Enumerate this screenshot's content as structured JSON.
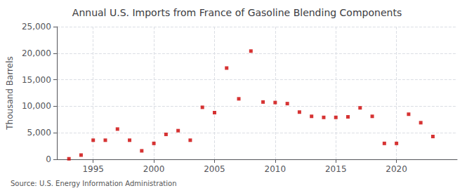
{
  "chart_data": {
    "type": "scatter",
    "title": "Annual U.S. Imports from France of Gasoline Blending Components",
    "ylabel": "Thousand Barrels",
    "annotation": "Source: U.S. Energy Information Administration",
    "x": [
      1993,
      1994,
      1995,
      1996,
      1997,
      1998,
      1999,
      2000,
      2001,
      2002,
      2003,
      2004,
      2005,
      2006,
      2007,
      2008,
      2009,
      2010,
      2011,
      2012,
      2013,
      2014,
      2015,
      2016,
      2017,
      2018,
      2019,
      2020,
      2021,
      2022,
      2023
    ],
    "values": [
      100,
      800,
      3600,
      3600,
      5700,
      3600,
      1600,
      3000,
      4700,
      5400,
      3600,
      9800,
      8800,
      17200,
      11400,
      20400,
      10800,
      10700,
      10500,
      8900,
      8100,
      7900,
      7900,
      8000,
      9700,
      8100,
      3000,
      3000,
      8500,
      6900,
      4300
    ],
    "color": "#cc0000",
    "marker": "square",
    "xlim": [
      1992,
      2025
    ],
    "xticks": [
      1995,
      2000,
      2005,
      2010,
      2015,
      2020
    ],
    "ylim": [
      0,
      25000
    ],
    "yticks": [
      0,
      {
        "value": 5000,
        "label": "5,000"
      },
      {
        "value": 10000,
        "label": "10,000"
      },
      {
        "value": 15000,
        "label": "15,000"
      },
      {
        "value": 20000,
        "label": "20,000"
      },
      {
        "value": 25000,
        "label": "25,000"
      }
    ],
    "grid": true
  }
}
